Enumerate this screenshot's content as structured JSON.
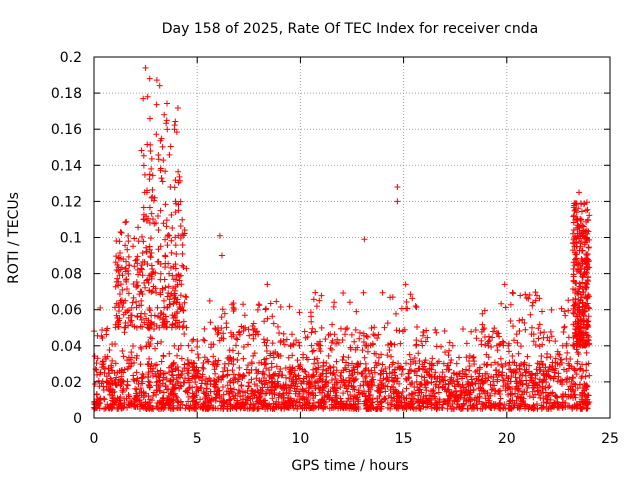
{
  "chart_data": {
    "type": "scatter",
    "title": "Day 158 of 2025, Rate Of TEC Index for receiver cnda",
    "xlabel": "GPS time / hours",
    "ylabel": "ROTI / TECUs",
    "xlim": [
      0,
      25
    ],
    "ylim": [
      0,
      0.2
    ],
    "xticks": [
      0,
      5,
      10,
      15,
      20,
      25
    ],
    "yticks": [
      0,
      0.02,
      0.04,
      0.06,
      0.08,
      0.1,
      0.12,
      0.14,
      0.16,
      0.18,
      0.2
    ],
    "x_tick_labels": [
      "0",
      "5",
      "10",
      "15",
      "20",
      "25"
    ],
    "y_tick_labels": [
      "0",
      "0.02",
      "0.04",
      "0.06",
      "0.08",
      "0.1",
      "0.12",
      "0.14",
      "0.16",
      "0.18",
      "0.2"
    ],
    "grid": true,
    "marker": "+",
    "color": "#ff0000",
    "data_x_range": [
      0,
      24
    ],
    "notable_points": [
      {
        "x": 2.5,
        "y": 0.194
      },
      {
        "x": 2.7,
        "y": 0.188
      },
      {
        "x": 2.6,
        "y": 0.178
      },
      {
        "x": 3.4,
        "y": 0.168
      },
      {
        "x": 3.9,
        "y": 0.16
      },
      {
        "x": 2.7,
        "y": 0.135
      },
      {
        "x": 3.7,
        "y": 0.128
      },
      {
        "x": 4.1,
        "y": 0.115
      },
      {
        "x": 6.1,
        "y": 0.101
      },
      {
        "x": 6.2,
        "y": 0.09
      },
      {
        "x": 13.1,
        "y": 0.099
      },
      {
        "x": 14.7,
        "y": 0.128
      },
      {
        "x": 14.7,
        "y": 0.12
      },
      {
        "x": 15.1,
        "y": 0.074
      },
      {
        "x": 19.9,
        "y": 0.074
      },
      {
        "x": 23.5,
        "y": 0.125
      },
      {
        "x": 23.6,
        "y": 0.11
      },
      {
        "x": 23.4,
        "y": 0.095
      },
      {
        "x": 23.9,
        "y": 0.102
      },
      {
        "x": 0.3,
        "y": 0.061
      },
      {
        "x": 1.1,
        "y": 0.082
      },
      {
        "x": 8.4,
        "y": 0.074
      },
      {
        "x": 10.8,
        "y": 0.062
      },
      {
        "x": 21.4,
        "y": 0.065
      }
    ],
    "clusters": [
      {
        "x_range": [
          0.0,
          24.0
        ],
        "y_range": [
          0.005,
          0.03
        ],
        "density": "very high"
      },
      {
        "x_range": [
          0.0,
          24.0
        ],
        "y_range": [
          0.03,
          0.05
        ],
        "density": "medium"
      },
      {
        "x_range": [
          1.0,
          4.5
        ],
        "y_range": [
          0.05,
          0.11
        ],
        "density": "medium"
      },
      {
        "x_range": [
          2.3,
          4.2
        ],
        "y_range": [
          0.11,
          0.19
        ],
        "density": "low"
      },
      {
        "x_range": [
          5.5,
          10.0
        ],
        "y_range": [
          0.04,
          0.065
        ],
        "density": "low"
      },
      {
        "x_range": [
          10.5,
          16.0
        ],
        "y_range": [
          0.04,
          0.07
        ],
        "density": "low"
      },
      {
        "x_range": [
          18.5,
          23.0
        ],
        "y_range": [
          0.04,
          0.07
        ],
        "density": "low"
      },
      {
        "x_range": [
          23.2,
          24.0
        ],
        "y_range": [
          0.04,
          0.12
        ],
        "density": "medium"
      }
    ]
  }
}
